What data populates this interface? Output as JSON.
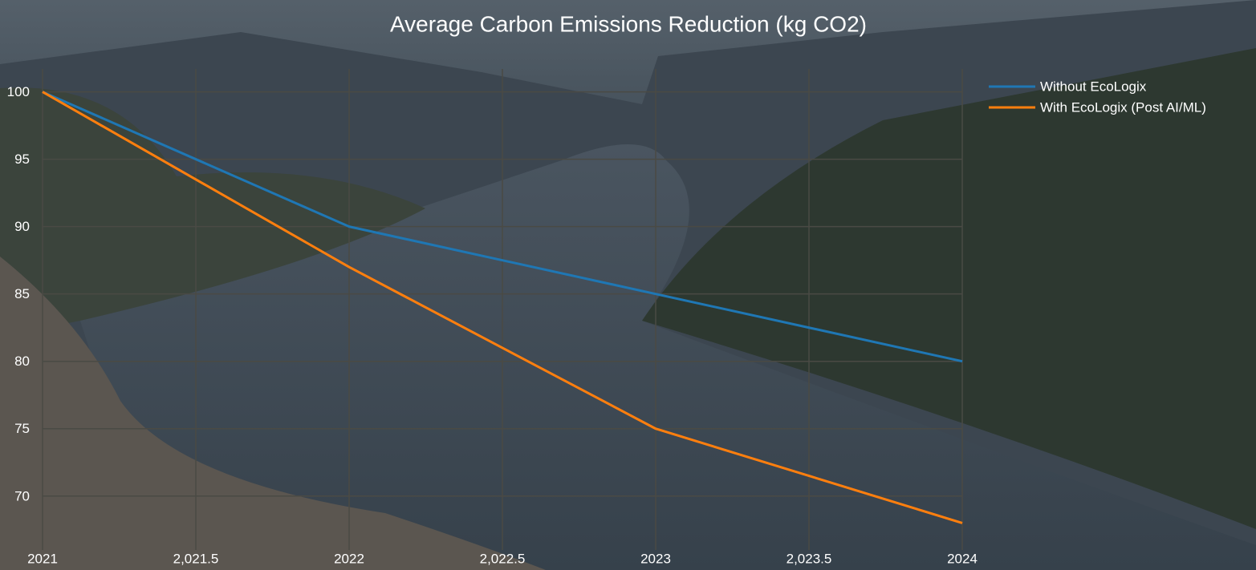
{
  "chart_data": {
    "type": "line",
    "title": "Average Carbon Emissions Reduction (kg CO2)",
    "x": [
      2021,
      2022,
      2023,
      2024
    ],
    "series": [
      {
        "name": "Without EcoLogix",
        "color": "#1f77b4",
        "values": [
          100,
          90,
          85,
          80
        ]
      },
      {
        "name": "With EcoLogix (Post AI/ML)",
        "color": "#ff7f0e",
        "values": [
          100,
          87,
          75,
          68
        ]
      }
    ],
    "xlim": [
      2021,
      2024
    ],
    "xticks": [
      2021,
      {
        "value": 2021.5,
        "label": "2,021.5"
      },
      2022,
      {
        "value": 2022.5,
        "label": "2,022.5"
      },
      2023,
      {
        "value": 2023.5,
        "label": "2,023.5"
      },
      2024
    ],
    "ylim": [
      66,
      101.7
    ],
    "yticks": [
      70,
      75,
      80,
      85,
      90,
      95,
      100
    ],
    "grid": true,
    "legend_position": "top right"
  }
}
